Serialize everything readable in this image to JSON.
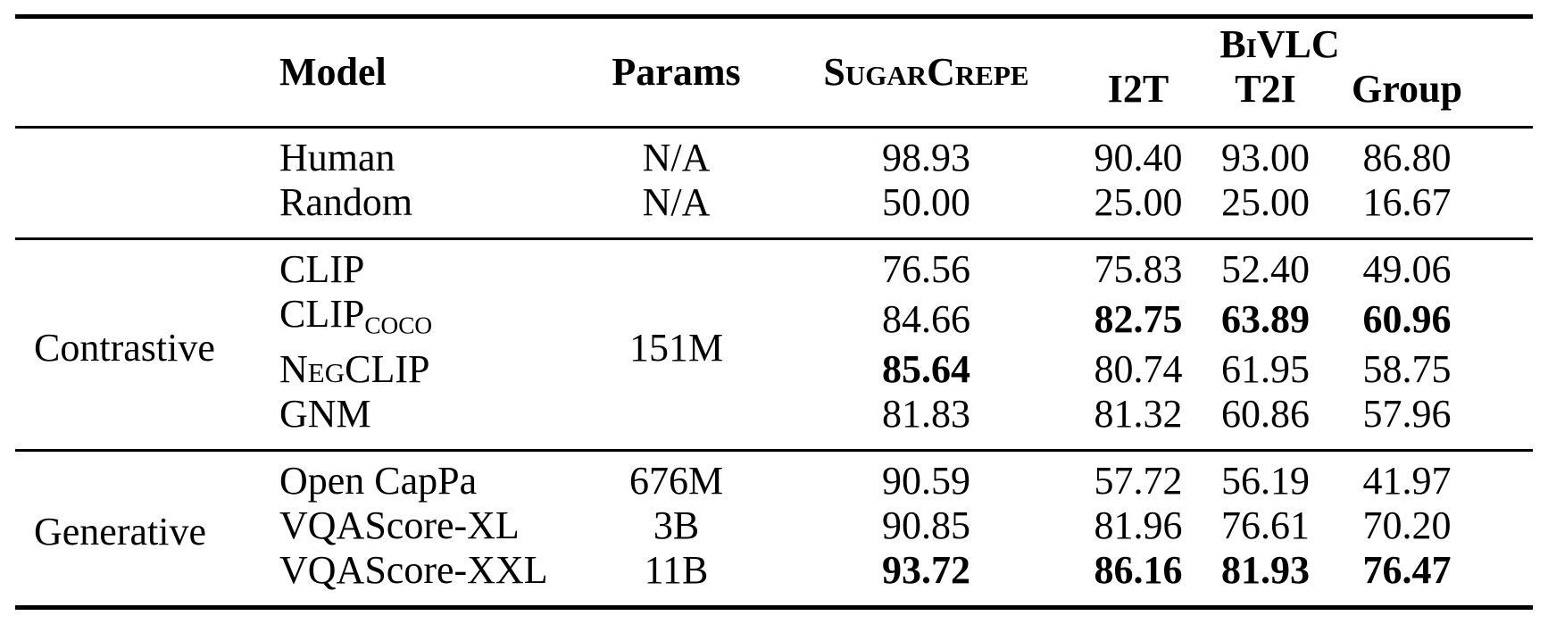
{
  "colors": {
    "background": "#ffffff",
    "text": "#000000",
    "rule": "#000000"
  },
  "table": {
    "header": {
      "model": "Model",
      "params": "Params",
      "sugarcrepe": "SugarCrepe",
      "bivlc": "BiVLC",
      "subcolumns": [
        "I2T",
        "T2I",
        "Group"
      ]
    },
    "sections": [
      {
        "group_label": "",
        "shared_params": null,
        "rows": [
          {
            "model": [
              {
                "text": "Human"
              }
            ],
            "params": "N/A",
            "values": [
              "98.93",
              "90.40",
              "93.00",
              "86.80"
            ],
            "bold": [
              false,
              false,
              false,
              false
            ]
          },
          {
            "model": [
              {
                "text": "Random"
              }
            ],
            "params": "N/A",
            "values": [
              "50.00",
              "25.00",
              "25.00",
              "16.67"
            ],
            "bold": [
              false,
              false,
              false,
              false
            ]
          }
        ]
      },
      {
        "group_label": "Contrastive",
        "shared_params": "151M",
        "rows": [
          {
            "model": [
              {
                "text": "CLIP"
              }
            ],
            "values": [
              "76.56",
              "75.83",
              "52.40",
              "49.06"
            ],
            "bold": [
              false,
              false,
              false,
              false
            ]
          },
          {
            "model": [
              {
                "text": "CLIP"
              },
              {
                "text": "COCO",
                "style": "subscript"
              }
            ],
            "values": [
              "84.66",
              "82.75",
              "63.89",
              "60.96"
            ],
            "bold": [
              false,
              true,
              true,
              true
            ]
          },
          {
            "model": [
              {
                "text": "Neg",
                "style": "smallcaps"
              },
              {
                "text": "CLIP"
              }
            ],
            "values": [
              "85.64",
              "80.74",
              "61.95",
              "58.75"
            ],
            "bold": [
              true,
              false,
              false,
              false
            ]
          },
          {
            "model": [
              {
                "text": "GNM"
              }
            ],
            "values": [
              "81.83",
              "81.32",
              "60.86",
              "57.96"
            ],
            "bold": [
              false,
              false,
              false,
              false
            ]
          }
        ]
      },
      {
        "group_label": "Generative",
        "shared_params": null,
        "rows": [
          {
            "model": [
              {
                "text": "Open CapPa"
              }
            ],
            "params": "676M",
            "values": [
              "90.59",
              "57.72",
              "56.19",
              "41.97"
            ],
            "bold": [
              false,
              false,
              false,
              false
            ]
          },
          {
            "model": [
              {
                "text": "VQAScore-XL"
              }
            ],
            "params": "3B",
            "values": [
              "90.85",
              "81.96",
              "76.61",
              "70.20"
            ],
            "bold": [
              false,
              false,
              false,
              false
            ]
          },
          {
            "model": [
              {
                "text": "VQAScore-XXL"
              }
            ],
            "params": "11B",
            "values": [
              "93.72",
              "86.16",
              "81.93",
              "76.47"
            ],
            "bold": [
              true,
              true,
              true,
              true
            ]
          }
        ]
      }
    ]
  }
}
